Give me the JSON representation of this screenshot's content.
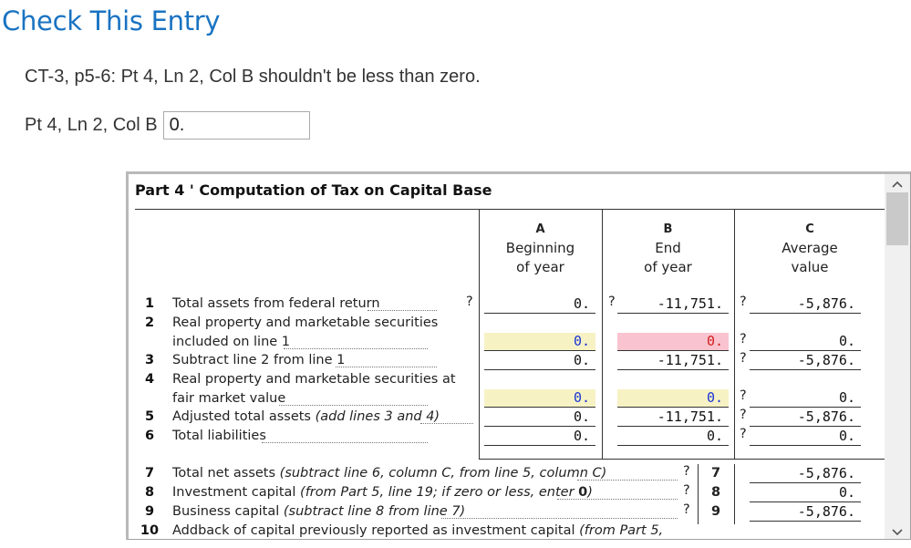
{
  "page": {
    "title": "Check This Entry",
    "message": "CT-3, p5-6: Pt 4, Ln 2, Col B shouldn't be less than zero.",
    "field_label": "Pt 4, Ln 2, Col B",
    "field_value": "0."
  },
  "form": {
    "part_title": "Part 4 ' Computation of Tax on Capital Base",
    "columns": [
      {
        "letter": "A",
        "line1": "Beginning",
        "line2": "of year"
      },
      {
        "letter": "B",
        "line1": "End",
        "line2": "of year"
      },
      {
        "letter": "C",
        "line1": "Average",
        "line2": "value"
      }
    ],
    "lines": [
      {
        "num": "1",
        "text": "Total assets from federal return",
        "q_left": "?",
        "a": "0.",
        "q_a": "?",
        "b": "-11,751.",
        "q_b": "?",
        "c": "-5,876."
      },
      {
        "num": "2",
        "text": "Real property and marketable securities",
        "text2": "included on line 1",
        "a": "0.",
        "b": "0.",
        "q_b": "?",
        "c": "0."
      },
      {
        "num": "3",
        "text": "Subtract line 2 from line 1",
        "a": "0.",
        "b": "-11,751.",
        "q_b": "?",
        "c": "-5,876."
      },
      {
        "num": "4",
        "text": "Real property and marketable securities at",
        "text2": "fair market value",
        "a": "0.",
        "b": "0.",
        "q_b": "?",
        "c": "0."
      },
      {
        "num": "5",
        "text": "Adjusted total assets ",
        "text_italic": "(add lines 3 and 4)",
        "a": "0.",
        "b": "-11,751.",
        "q_b": "?",
        "c": "-5,876."
      },
      {
        "num": "6",
        "text": "Total liabilities",
        "a": "0.",
        "b": "0.",
        "q_b": "?",
        "c": "0."
      }
    ],
    "lower_lines": [
      {
        "num": "7",
        "text": "Total net assets ",
        "text_italic": "(subtract line 6, column C, from line 5, column C)",
        "q": "?",
        "box": "7",
        "c": "-5,876."
      },
      {
        "num": "8",
        "text": "Investment capital ",
        "text_italic": "(from Part 5, line 19; if zero or less, enter ",
        "text_bold": "0",
        "text_end": ")",
        "q": "?",
        "box": "8",
        "c": "0."
      },
      {
        "num": "9",
        "text": "Business capital ",
        "text_italic": "(subtract line 8 from line 7)",
        "q": "?",
        "box": "9",
        "c": "-5,876."
      },
      {
        "num": "10",
        "text": "Addback of capital previously reported as investment capital ",
        "text_italic": "(from Part 5,"
      }
    ]
  },
  "scrollbar": {
    "up_icon": "chevron-up-icon",
    "down_icon": "chevron-down-icon"
  }
}
